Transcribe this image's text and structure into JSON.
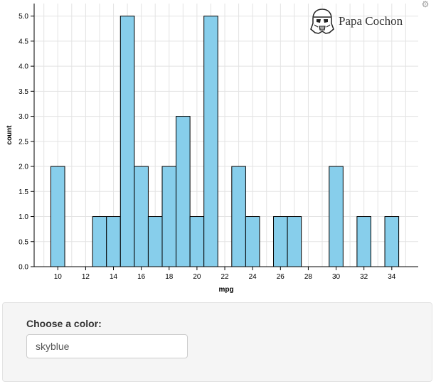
{
  "watermark": {
    "text": "Papa Cochon",
    "icon": "stormtrooper-helmet-icon"
  },
  "settings_icon": "gear-icon",
  "controls": {
    "color_label": "Choose a color:",
    "color_value": "skyblue"
  },
  "chart_data": {
    "type": "bar",
    "subtype": "histogram",
    "xlabel": "mpg",
    "ylabel": "count",
    "fill_color": "#87ceeb",
    "stroke_color": "#000000",
    "grid": true,
    "xlim": [
      8.3,
      35.9
    ],
    "ylim": [
      0,
      5.25
    ],
    "x_ticks": [
      10,
      12,
      14,
      16,
      18,
      20,
      22,
      24,
      26,
      28,
      30,
      32,
      34
    ],
    "y_ticks": [
      0.0,
      0.5,
      1.0,
      1.5,
      2.0,
      2.5,
      3.0,
      3.5,
      4.0,
      4.5,
      5.0
    ],
    "y_tick_labels": [
      "0.0",
      "0.5",
      "1.0",
      "1.5",
      "2.0",
      "2.5",
      "3.0",
      "3.5",
      "4.0",
      "4.5",
      "5.0"
    ],
    "bins": [
      {
        "x0": 9.5,
        "x1": 10.5,
        "count": 2
      },
      {
        "x0": 12.5,
        "x1": 13.5,
        "count": 1
      },
      {
        "x0": 13.5,
        "x1": 14.5,
        "count": 1
      },
      {
        "x0": 14.5,
        "x1": 15.5,
        "count": 5
      },
      {
        "x0": 15.5,
        "x1": 16.5,
        "count": 2
      },
      {
        "x0": 16.5,
        "x1": 17.5,
        "count": 1
      },
      {
        "x0": 17.5,
        "x1": 18.5,
        "count": 2
      },
      {
        "x0": 18.5,
        "x1": 19.5,
        "count": 3
      },
      {
        "x0": 19.5,
        "x1": 20.5,
        "count": 1
      },
      {
        "x0": 20.5,
        "x1": 21.5,
        "count": 5
      },
      {
        "x0": 22.5,
        "x1": 23.5,
        "count": 2
      },
      {
        "x0": 23.5,
        "x1": 24.5,
        "count": 1
      },
      {
        "x0": 25.5,
        "x1": 26.5,
        "count": 1
      },
      {
        "x0": 26.5,
        "x1": 27.5,
        "count": 1
      },
      {
        "x0": 29.5,
        "x1": 30.5,
        "count": 2
      },
      {
        "x0": 31.5,
        "x1": 32.5,
        "count": 1
      },
      {
        "x0": 33.5,
        "x1": 34.5,
        "count": 1
      }
    ]
  }
}
